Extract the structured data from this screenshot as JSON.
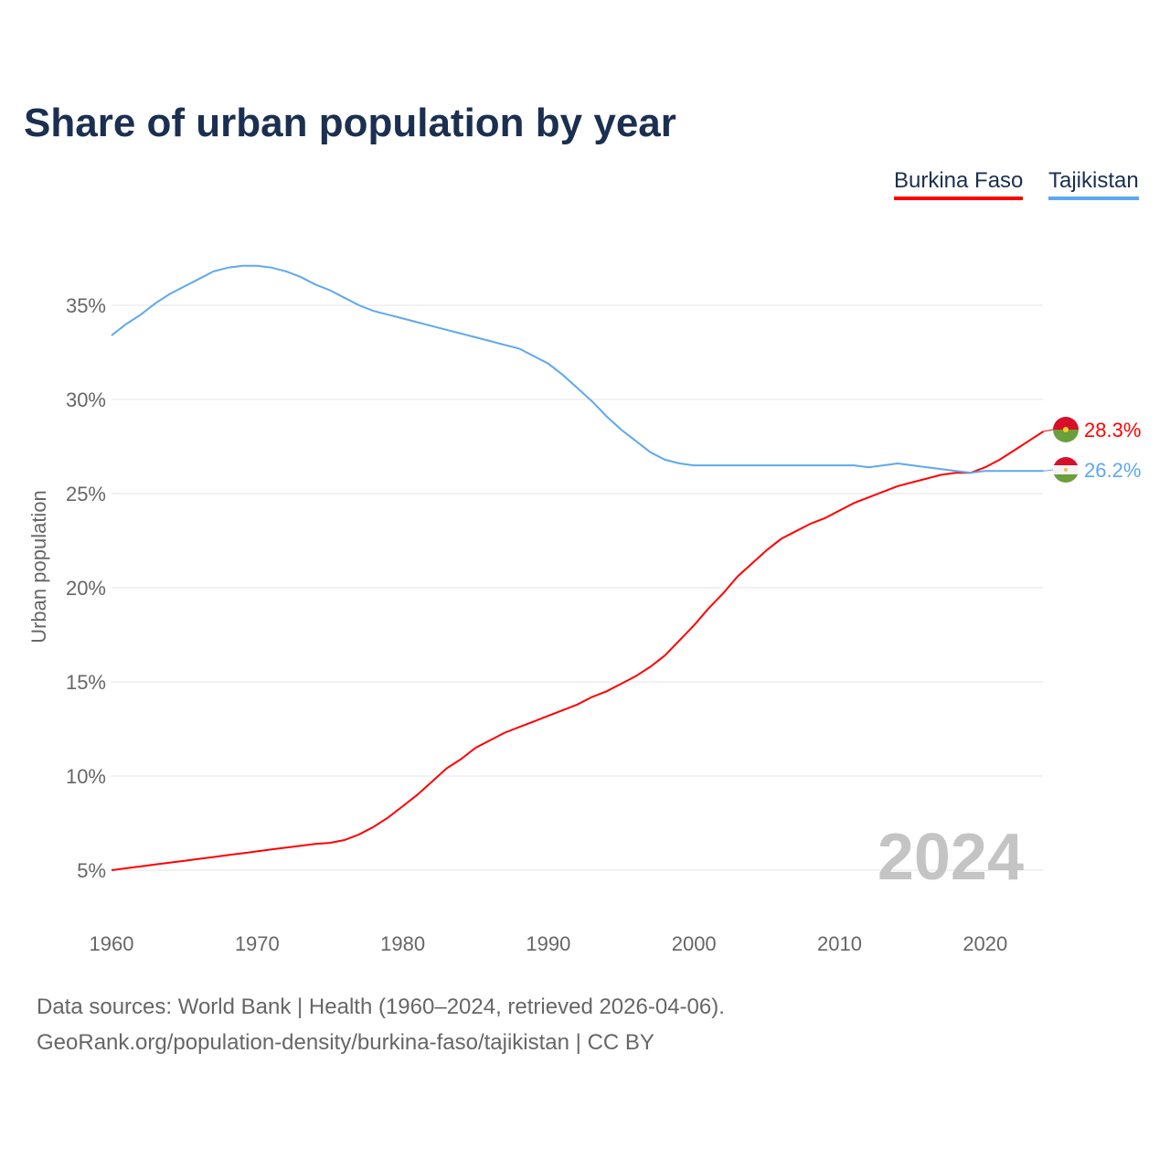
{
  "chart_data": {
    "type": "line",
    "title": "Share of urban population by year",
    "xlabel": "",
    "ylabel": "Urban population",
    "xlim": [
      1960,
      2024
    ],
    "ylim": [
      2.5,
      38
    ],
    "x_ticks": [
      "1960",
      "1970",
      "1980",
      "1990",
      "2000",
      "2010",
      "2020"
    ],
    "y_ticks": [
      "5%",
      "10%",
      "15%",
      "20%",
      "25%",
      "30%",
      "35%"
    ],
    "grid": true,
    "legend_position": "top-right",
    "year_label": "2024",
    "x": [
      1960,
      1961,
      1962,
      1963,
      1964,
      1965,
      1966,
      1967,
      1968,
      1969,
      1970,
      1971,
      1972,
      1973,
      1974,
      1975,
      1976,
      1977,
      1978,
      1979,
      1980,
      1981,
      1982,
      1983,
      1984,
      1985,
      1986,
      1987,
      1988,
      1989,
      1990,
      1991,
      1992,
      1993,
      1994,
      1995,
      1996,
      1997,
      1998,
      1999,
      2000,
      2001,
      2002,
      2003,
      2004,
      2005,
      2006,
      2007,
      2008,
      2009,
      2010,
      2011,
      2012,
      2013,
      2014,
      2015,
      2016,
      2017,
      2018,
      2019,
      2020,
      2021,
      2022,
      2023,
      2024
    ],
    "series": [
      {
        "name": "Burkina Faso",
        "color": "#ff0000",
        "end_label": "28.3%",
        "values": [
          5.0,
          5.1,
          5.2,
          5.3,
          5.4,
          5.5,
          5.6,
          5.7,
          5.8,
          5.9,
          6.0,
          6.1,
          6.2,
          6.3,
          6.4,
          6.45,
          6.6,
          6.9,
          7.3,
          7.8,
          8.4,
          9.0,
          9.7,
          10.4,
          10.9,
          11.5,
          11.9,
          12.3,
          12.6,
          12.9,
          13.2,
          13.5,
          13.8,
          14.2,
          14.5,
          14.9,
          15.3,
          15.8,
          16.4,
          17.2,
          18.0,
          18.9,
          19.7,
          20.6,
          21.3,
          22.0,
          22.6,
          23.0,
          23.4,
          23.7,
          24.1,
          24.5,
          24.8,
          25.1,
          25.4,
          25.6,
          25.8,
          26.0,
          26.1,
          26.1,
          26.4,
          26.8,
          27.3,
          27.8,
          28.3
        ]
      },
      {
        "name": "Tajikistan",
        "color": "#5ea8ef",
        "end_label": "26.2%",
        "values": [
          33.4,
          34.0,
          34.5,
          35.1,
          35.6,
          36.0,
          36.4,
          36.8,
          37.0,
          37.1,
          37.1,
          37.0,
          36.8,
          36.5,
          36.1,
          35.8,
          35.4,
          35.0,
          34.7,
          34.5,
          34.3,
          34.1,
          33.9,
          33.7,
          33.5,
          33.3,
          33.1,
          32.9,
          32.7,
          32.3,
          31.9,
          31.3,
          30.6,
          29.9,
          29.1,
          28.4,
          27.8,
          27.2,
          26.8,
          26.6,
          26.5,
          26.5,
          26.5,
          26.5,
          26.5,
          26.5,
          26.5,
          26.5,
          26.5,
          26.5,
          26.5,
          26.5,
          26.4,
          26.5,
          26.6,
          26.5,
          26.4,
          26.3,
          26.2,
          26.1,
          26.2,
          26.2,
          26.2,
          26.2,
          26.2
        ]
      }
    ]
  },
  "sources": {
    "line1": "Data sources: World Bank | Health (1960–2024, retrieved 2026-04-06).",
    "line2": "GeoRank.org/population-density/burkina-faso/tajikistan | CC BY"
  }
}
